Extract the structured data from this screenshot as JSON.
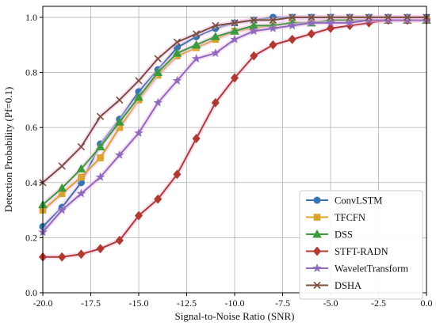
{
  "chart_data": {
    "type": "line",
    "xlabel": "Signal-to-Noise Ratio (SNR)",
    "ylabel": "Detection Probability (Pf=0.1)",
    "xlim": [
      -20,
      0
    ],
    "ylim": [
      0,
      1.04
    ],
    "x_ticks": [
      -20.0,
      -17.5,
      -15.0,
      -12.5,
      -10.0,
      -7.5,
      -5.0,
      -2.5,
      0.0
    ],
    "x_tick_labels": [
      "-20.0",
      "-17.5",
      "-15.0",
      "-12.5",
      "-10.0",
      "-7.5",
      "-5.0",
      "-2.5",
      "0.0"
    ],
    "y_ticks": [
      0,
      0.2,
      0.4,
      0.6,
      0.8,
      1.0
    ],
    "y_tick_labels": [
      "0.0",
      "0.2",
      "0.4",
      "0.6",
      "0.8",
      "1.0"
    ],
    "grid": true,
    "legend_position": "lower-right",
    "x": [
      -20,
      -19,
      -18,
      -17,
      -16,
      -15,
      -14,
      -13,
      -12,
      -11,
      -10,
      -9,
      -8,
      -7,
      -6,
      -5,
      -4,
      -3,
      -2,
      -1,
      0
    ],
    "series": [
      {
        "name": "ConvLSTM",
        "color": "#3a75b0",
        "marker": "circle",
        "values": [
          0.24,
          0.31,
          0.4,
          0.54,
          0.63,
          0.73,
          0.81,
          0.89,
          0.93,
          0.96,
          0.98,
          0.99,
          1.0,
          1.0,
          1.0,
          1.0,
          1.0,
          1.0,
          1.0,
          1.0,
          1.0
        ]
      },
      {
        "name": "TFCFN",
        "color": "#d9a431",
        "marker": "square",
        "values": [
          0.3,
          0.36,
          0.42,
          0.49,
          0.6,
          0.7,
          0.79,
          0.86,
          0.89,
          0.92,
          0.95,
          0.96,
          0.97,
          0.98,
          0.98,
          0.99,
          0.99,
          0.99,
          0.99,
          0.99,
          0.99
        ]
      },
      {
        "name": "DSS",
        "color": "#3b9a3c",
        "marker": "triangle",
        "values": [
          0.32,
          0.38,
          0.45,
          0.53,
          0.62,
          0.71,
          0.8,
          0.87,
          0.9,
          0.93,
          0.95,
          0.97,
          0.97,
          0.98,
          0.98,
          0.99,
          0.99,
          0.99,
          0.99,
          0.99,
          0.99
        ]
      },
      {
        "name": "STFT-RADN",
        "color": "#b03a32",
        "marker": "diamond",
        "values": [
          0.13,
          0.13,
          0.14,
          0.16,
          0.19,
          0.28,
          0.34,
          0.43,
          0.56,
          0.69,
          0.78,
          0.86,
          0.9,
          0.92,
          0.94,
          0.96,
          0.97,
          0.98,
          0.99,
          0.99,
          0.99
        ]
      },
      {
        "name": "WaveletTransform",
        "color": "#8e6bbf",
        "marker": "star",
        "values": [
          0.22,
          0.3,
          0.36,
          0.42,
          0.5,
          0.58,
          0.69,
          0.77,
          0.85,
          0.87,
          0.92,
          0.95,
          0.96,
          0.97,
          0.98,
          0.98,
          0.98,
          0.99,
          0.99,
          0.99,
          0.99
        ]
      },
      {
        "name": "DSHA",
        "color": "#7a4e3c",
        "marker": "x",
        "values": [
          0.4,
          0.46,
          0.53,
          0.64,
          0.7,
          0.77,
          0.85,
          0.91,
          0.94,
          0.97,
          0.98,
          0.99,
          0.99,
          1.0,
          1.0,
          1.0,
          1.0,
          1.0,
          1.0,
          1.0,
          1.0
        ]
      }
    ]
  }
}
